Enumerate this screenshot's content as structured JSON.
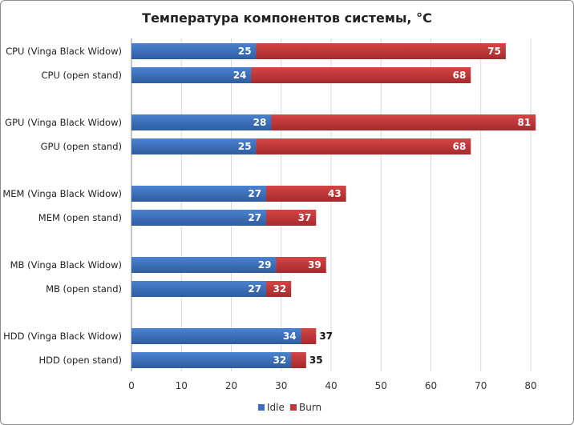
{
  "chart_data": {
    "type": "bar",
    "orientation": "horizontal",
    "title": "Температура компонентов системы, °C",
    "categories": [
      "CPU (Vinga Black Widow)",
      "CPU (open stand)",
      "GPU (Vinga Black Widow)",
      "GPU (open stand)",
      "MEM (Vinga Black Widow)",
      "MEM (open stand)",
      "MB (Vinga Black Widow)",
      "MB (open stand)",
      "HDD (Vinga Black Widow)",
      "HDD (open stand)"
    ],
    "series": [
      {
        "name": "Idle",
        "color": "#3a6fbf",
        "values": [
          25,
          24,
          28,
          25,
          27,
          27,
          29,
          27,
          34,
          32
        ]
      },
      {
        "name": "Burn",
        "color": "#c0393b",
        "values": [
          75,
          68,
          81,
          68,
          43,
          37,
          39,
          32,
          37,
          35
        ]
      }
    ],
    "xlim": [
      0,
      80
    ],
    "xticks": [
      0,
      10,
      20,
      30,
      40,
      50,
      60,
      70,
      80
    ],
    "grid": true,
    "legend": "bottom",
    "xlabel": "",
    "ylabel": ""
  }
}
